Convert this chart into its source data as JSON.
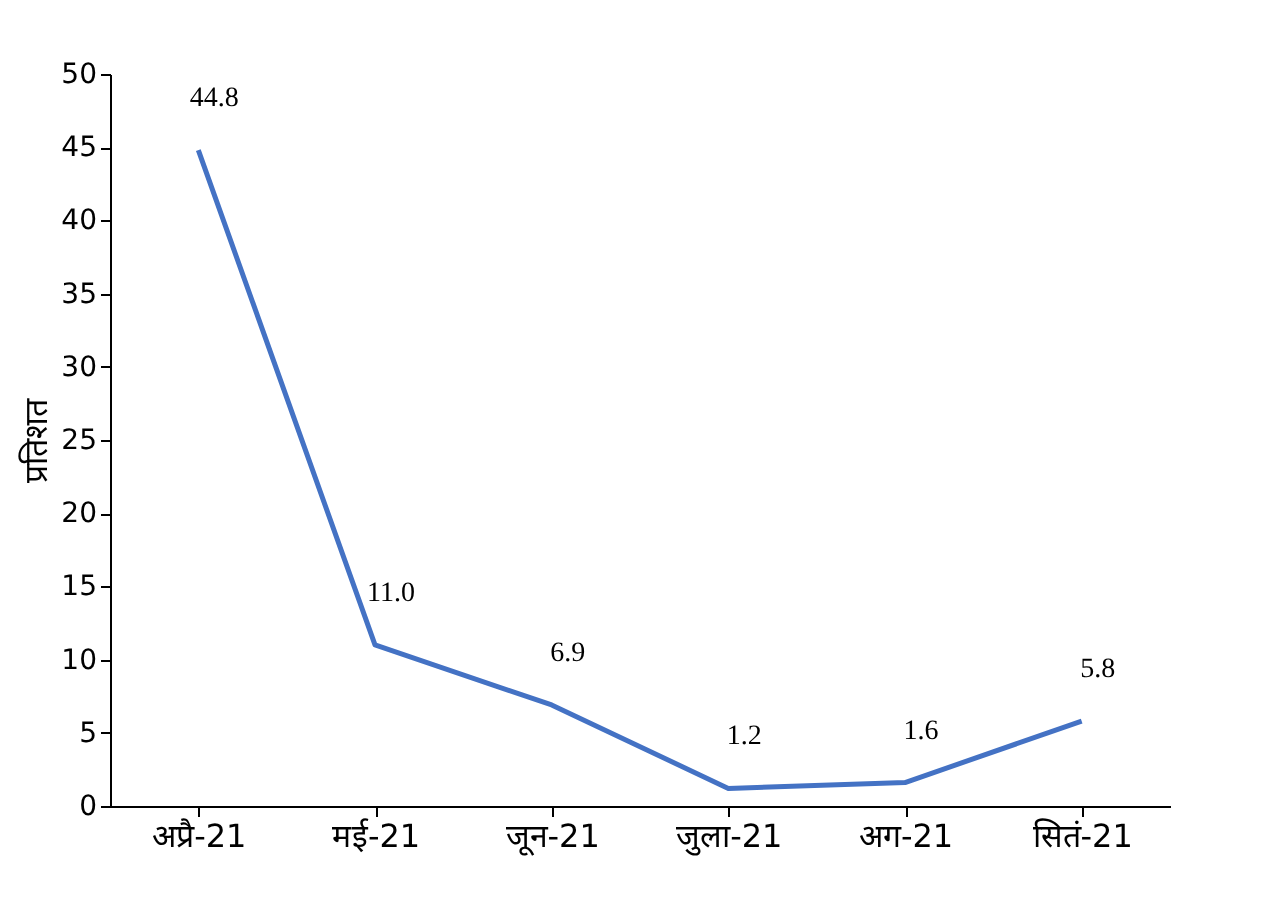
{
  "chart_data": {
    "type": "line",
    "ylabel": "प्रतिशत",
    "categories": [
      "अप्रै-21",
      "मई-21",
      "जून-21",
      "जुला-21",
      "अग-21",
      "सितं-21"
    ],
    "series": [
      {
        "color": "#4472c4",
        "values": [
          44.8,
          11.0,
          6.9,
          1.2,
          1.6,
          5.8
        ],
        "value_labels": [
          "44.8",
          "11.0",
          "6.9",
          "1.2",
          "1.6",
          "5.8"
        ]
      }
    ],
    "ylim": [
      0,
      50
    ],
    "yticks": [
      0,
      5,
      10,
      15,
      20,
      25,
      30,
      35,
      40,
      45,
      50
    ],
    "grid": false,
    "legend": false,
    "marker": "none",
    "line_style": "solid"
  }
}
